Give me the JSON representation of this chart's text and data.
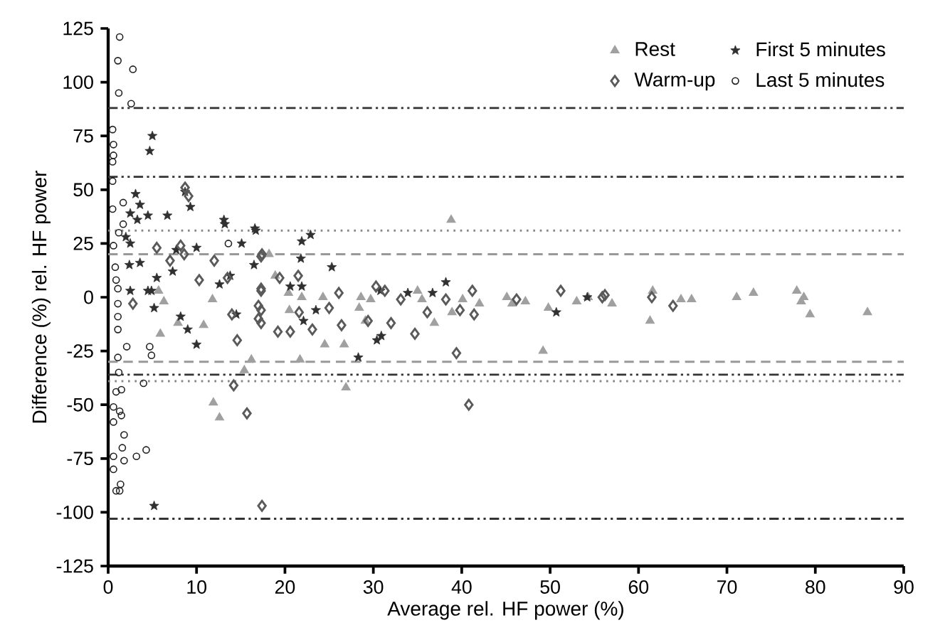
{
  "chart_data": {
    "type": "scatter",
    "xlabel": "Average rel. HF power (%)",
    "ylabel": "Difference (%) rel. HF power",
    "xlim": [
      0,
      90
    ],
    "ylim": [
      -125,
      125
    ],
    "xticks": [
      0,
      10,
      20,
      30,
      40,
      50,
      60,
      70,
      80,
      90
    ],
    "yticks": [
      -125,
      -100,
      -75,
      -50,
      -25,
      0,
      25,
      50,
      75,
      100,
      125
    ],
    "legend": "top right",
    "series": [
      {
        "name": "Rest",
        "color": "#a0a0a0",
        "marker": "triangle",
        "x": [
          18.2,
          18.9,
          20.4,
          20.5,
          21.9,
          24.3,
          24.5,
          26.7,
          21.7,
          26.9,
          28.6,
          29.7,
          28.4,
          29.1,
          35,
          35.5,
          36.9,
          38.8,
          38.9,
          40.1,
          42,
          45.1,
          45.7,
          47.2,
          49.8,
          49.2,
          53,
          54.3,
          57,
          61.6,
          61.3,
          64.8,
          66,
          71.1,
          73,
          77.9,
          78.7,
          78.4,
          79.4,
          85.9,
          5.7,
          6.3,
          5.9,
          7.9,
          10.8,
          11.8,
          11.9,
          12.6,
          16.2,
          15.4
        ],
        "values": [
          20,
          10,
          2,
          -6,
          0,
          0,
          -22,
          -22,
          -29,
          -42,
          0,
          -1,
          -5,
          -11,
          3,
          -1,
          -12,
          36,
          -7,
          -1,
          -3,
          0,
          -3,
          -2,
          -5,
          -25,
          -2,
          0,
          -3,
          3,
          -11,
          -1,
          -1,
          0,
          2,
          3,
          0,
          -2,
          -8,
          -7,
          3,
          -2,
          -17,
          -12,
          -13,
          -1,
          -49,
          -56,
          -29,
          -34
        ]
      },
      {
        "name": "First 5 minutes",
        "color": "#303030",
        "marker": "star",
        "x": [
          5,
          4.7,
          3.1,
          3.6,
          2.5,
          4.5,
          3.3,
          6.7,
          8.7,
          9.3,
          13.1,
          13.2,
          16.6,
          15.1,
          2,
          2.5,
          2.4,
          3.6,
          7.7,
          10,
          5.5,
          7.3,
          4.9,
          12.6,
          13.8,
          16.5,
          2.5,
          4.5,
          5.2,
          8.2,
          9,
          10,
          14.5,
          5.2,
          16.7,
          21.9,
          22.9,
          21.8,
          25.3,
          20.6,
          21.9,
          22.1,
          23.5,
          30.4,
          30.9,
          28.3,
          30.8,
          33.9,
          36.7,
          38.2,
          50.7,
          54.2
        ],
        "values": [
          75,
          68,
          48,
          43,
          39,
          38,
          36,
          38,
          49,
          42,
          36,
          34,
          32,
          25,
          28,
          25,
          15,
          16,
          22,
          23,
          9,
          12,
          3,
          6,
          10,
          15,
          3,
          3,
          -5,
          -9,
          -15,
          -22,
          -8,
          -97,
          31,
          26,
          29,
          18,
          14,
          5,
          5,
          -11,
          -6,
          -20,
          -18,
          -28,
          3,
          2,
          2,
          7,
          -7,
          0
        ]
      },
      {
        "name": "Warm-up",
        "color": "#5a5a5a",
        "marker": "diamond",
        "x": [
          5.5,
          8.2,
          7,
          8.6,
          12,
          8.7,
          9.1,
          10.3,
          13.5,
          17.3,
          17.4,
          2.8,
          14,
          14.6,
          17,
          17,
          17.3,
          14.2,
          15.7,
          17.4,
          17.3,
          19.4,
          21.5,
          17.3,
          17.3,
          19.2,
          20.6,
          21.6,
          23.1,
          26.1,
          26.4,
          30.3,
          31.3,
          32,
          33.1,
          34.7,
          36.1,
          38.2,
          39.8,
          41.2,
          41.4,
          39.4,
          40.8,
          46.2,
          25,
          29.4,
          51.2,
          56.2,
          61.5,
          63.9,
          55.9
        ],
        "values": [
          23,
          24,
          17,
          20,
          17,
          51,
          47,
          8,
          9,
          3,
          20,
          -3,
          -8,
          -20,
          -4,
          -10,
          4,
          -41,
          -54,
          -97,
          19,
          9,
          10,
          -6,
          -12,
          -16,
          -16,
          -7,
          -15,
          2,
          -13,
          5,
          3,
          -12,
          -1,
          -17,
          -7,
          -1,
          -6,
          3,
          -8,
          -26,
          -50,
          -1,
          -5,
          -11,
          3,
          1,
          0,
          -4,
          0
        ]
      },
      {
        "name": "Last 5 minutes",
        "color": "#202020",
        "marker": "circle",
        "x": [
          1.3,
          1.1,
          2.8,
          1.2,
          2.6,
          0.5,
          0.6,
          0.6,
          0.5,
          0.5,
          1.7,
          0.5,
          1.7,
          1.2,
          13.6,
          0.6,
          0.8,
          0.9,
          1.1,
          1.1,
          1.1,
          1.1,
          2.1,
          4.7,
          4.9,
          1.1,
          1.2,
          4,
          0.9,
          1.5,
          0.6,
          1.3,
          0.6,
          1.5,
          1.8,
          0.6,
          1.6,
          4.3,
          3.2,
          1.8,
          0.6,
          1.4,
          0.9,
          1.3
        ],
        "values": [
          121,
          110,
          106,
          95,
          90,
          78,
          71,
          66,
          63,
          54,
          44,
          41,
          34,
          30,
          25,
          24,
          14,
          8,
          4,
          -3,
          -9,
          -15,
          -23,
          -23,
          -27,
          -28,
          -35,
          -40,
          -44,
          -43,
          -51,
          -53,
          -58,
          -55,
          -64,
          -74,
          -70,
          -71,
          -74,
          -76,
          -80,
          -87,
          -90,
          -90
        ]
      }
    ],
    "ref_lines": [
      {
        "axis": "y",
        "value": 88,
        "color": "#333333",
        "line_style": "dashdot"
      },
      {
        "axis": "y",
        "value": 56,
        "color": "#333333",
        "line_style": "dashdot"
      },
      {
        "axis": "y",
        "value": 31,
        "color": "#888888",
        "line_style": "dotted"
      },
      {
        "axis": "y",
        "value": 20,
        "color": "#999999",
        "line_style": "dashed"
      },
      {
        "axis": "y",
        "value": -30,
        "color": "#999999",
        "line_style": "dashed"
      },
      {
        "axis": "y",
        "value": -36,
        "color": "#333333",
        "line_style": "dashdot"
      },
      {
        "axis": "y",
        "value": -39,
        "color": "#888888",
        "line_style": "dotted"
      },
      {
        "axis": "y",
        "value": -103,
        "color": "#333333",
        "line_style": "dashdot"
      }
    ]
  }
}
